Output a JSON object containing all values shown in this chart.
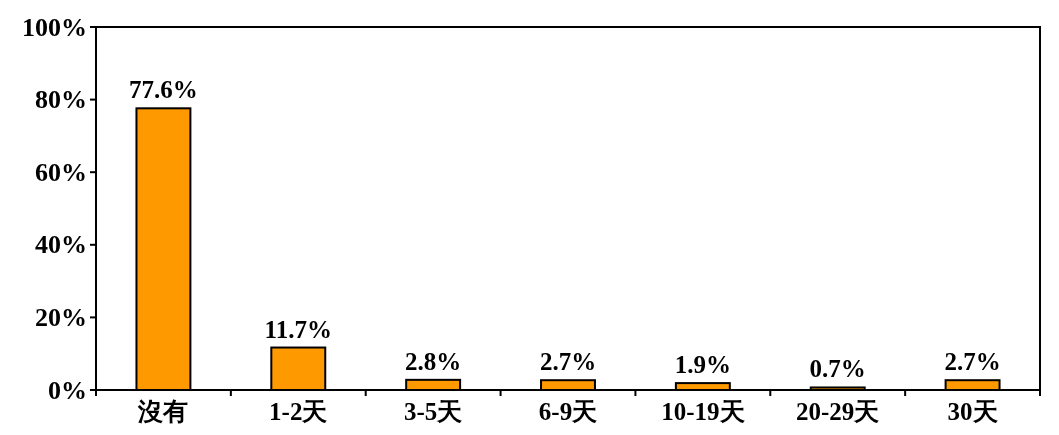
{
  "chart_data": {
    "type": "bar",
    "categories": [
      "沒有",
      "1-2天",
      "3-5天",
      "6-9天",
      "10-19天",
      "20-29天",
      "30天"
    ],
    "values": [
      77.6,
      11.7,
      2.8,
      2.7,
      1.9,
      0.7,
      2.7
    ],
    "value_labels": [
      "77.6%",
      "11.7%",
      "2.8%",
      "2.7%",
      "1.9%",
      "0.7%",
      "2.7%"
    ],
    "color": "#ff9900",
    "ylim": [
      0,
      100
    ],
    "yticks": [
      {
        "value": 0,
        "label": "0%"
      },
      {
        "value": 20,
        "label": "20%"
      },
      {
        "value": 40,
        "label": "40%"
      },
      {
        "value": 60,
        "label": "60%"
      },
      {
        "value": 80,
        "label": "80%"
      },
      {
        "value": 100,
        "label": "100%"
      }
    ]
  }
}
